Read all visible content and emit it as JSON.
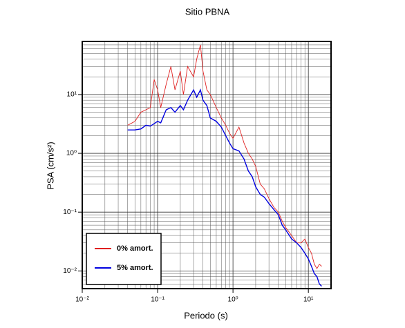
{
  "chart_data": {
    "type": "line",
    "title": "Sitio PBNA",
    "x_label": "Periodo (s)",
    "y_label": "PSA (cm/s²)",
    "log_x": true,
    "log_y": true,
    "grid": true,
    "legend_position": "lower left",
    "xlim": [
      0.01,
      20
    ],
    "ylim": [
      0.005,
      80
    ],
    "xticks": [
      {
        "value": 0.01,
        "label": "10⁻²"
      },
      {
        "value": 0.1,
        "label": "10⁻¹"
      },
      {
        "value": 1,
        "label": "10⁰"
      },
      {
        "value": 10,
        "label": "10¹"
      }
    ],
    "yticks": [
      {
        "value": 0.01,
        "label": "10⁻²"
      },
      {
        "value": 0.1,
        "label": "10⁻¹"
      },
      {
        "value": 1,
        "label": "10⁰"
      },
      {
        "value": 10,
        "label": "10¹"
      }
    ],
    "x": [
      0.04,
      0.05,
      0.06,
      0.07,
      0.08,
      0.09,
      0.1,
      0.11,
      0.13,
      0.15,
      0.17,
      0.2,
      0.22,
      0.25,
      0.3,
      0.33,
      0.37,
      0.4,
      0.45,
      0.5,
      0.6,
      0.7,
      0.8,
      0.9,
      1.0,
      1.2,
      1.4,
      1.6,
      1.8,
      2.0,
      2.3,
      2.6,
      3.0,
      3.5,
      4.0,
      4.5,
      5,
      6,
      7,
      8,
      9,
      10,
      11,
      12,
      13,
      14,
      15
    ],
    "series": [
      {
        "name": "0% amort.",
        "color": "#e02020",
        "values": [
          3,
          3.5,
          5,
          5.5,
          6,
          18,
          12,
          6,
          15,
          30,
          12,
          25,
          10,
          30,
          20,
          40,
          70,
          25,
          12,
          10,
          6,
          4,
          3,
          2.2,
          1.8,
          2.8,
          1.5,
          1.0,
          0.8,
          0.6,
          0.3,
          0.25,
          0.17,
          0.12,
          0.1,
          0.07,
          0.055,
          0.04,
          0.03,
          0.03,
          0.035,
          0.025,
          0.02,
          0.013,
          0.011,
          0.013,
          0.012
        ]
      },
      {
        "name": "5% amort.",
        "color": "#0000e0",
        "values": [
          2.5,
          2.5,
          2.6,
          3.0,
          2.9,
          3.2,
          3.5,
          3.3,
          5.5,
          6,
          5,
          6.5,
          5.5,
          8,
          12,
          9,
          12,
          8,
          6.5,
          4.0,
          3.5,
          2.8,
          2.0,
          1.5,
          1.2,
          1.1,
          0.8,
          0.5,
          0.4,
          0.27,
          0.2,
          0.18,
          0.14,
          0.11,
          0.09,
          0.06,
          0.05,
          0.035,
          0.03,
          0.025,
          0.02,
          0.016,
          0.012,
          0.009,
          0.008,
          0.006,
          0.0055
        ]
      }
    ]
  }
}
